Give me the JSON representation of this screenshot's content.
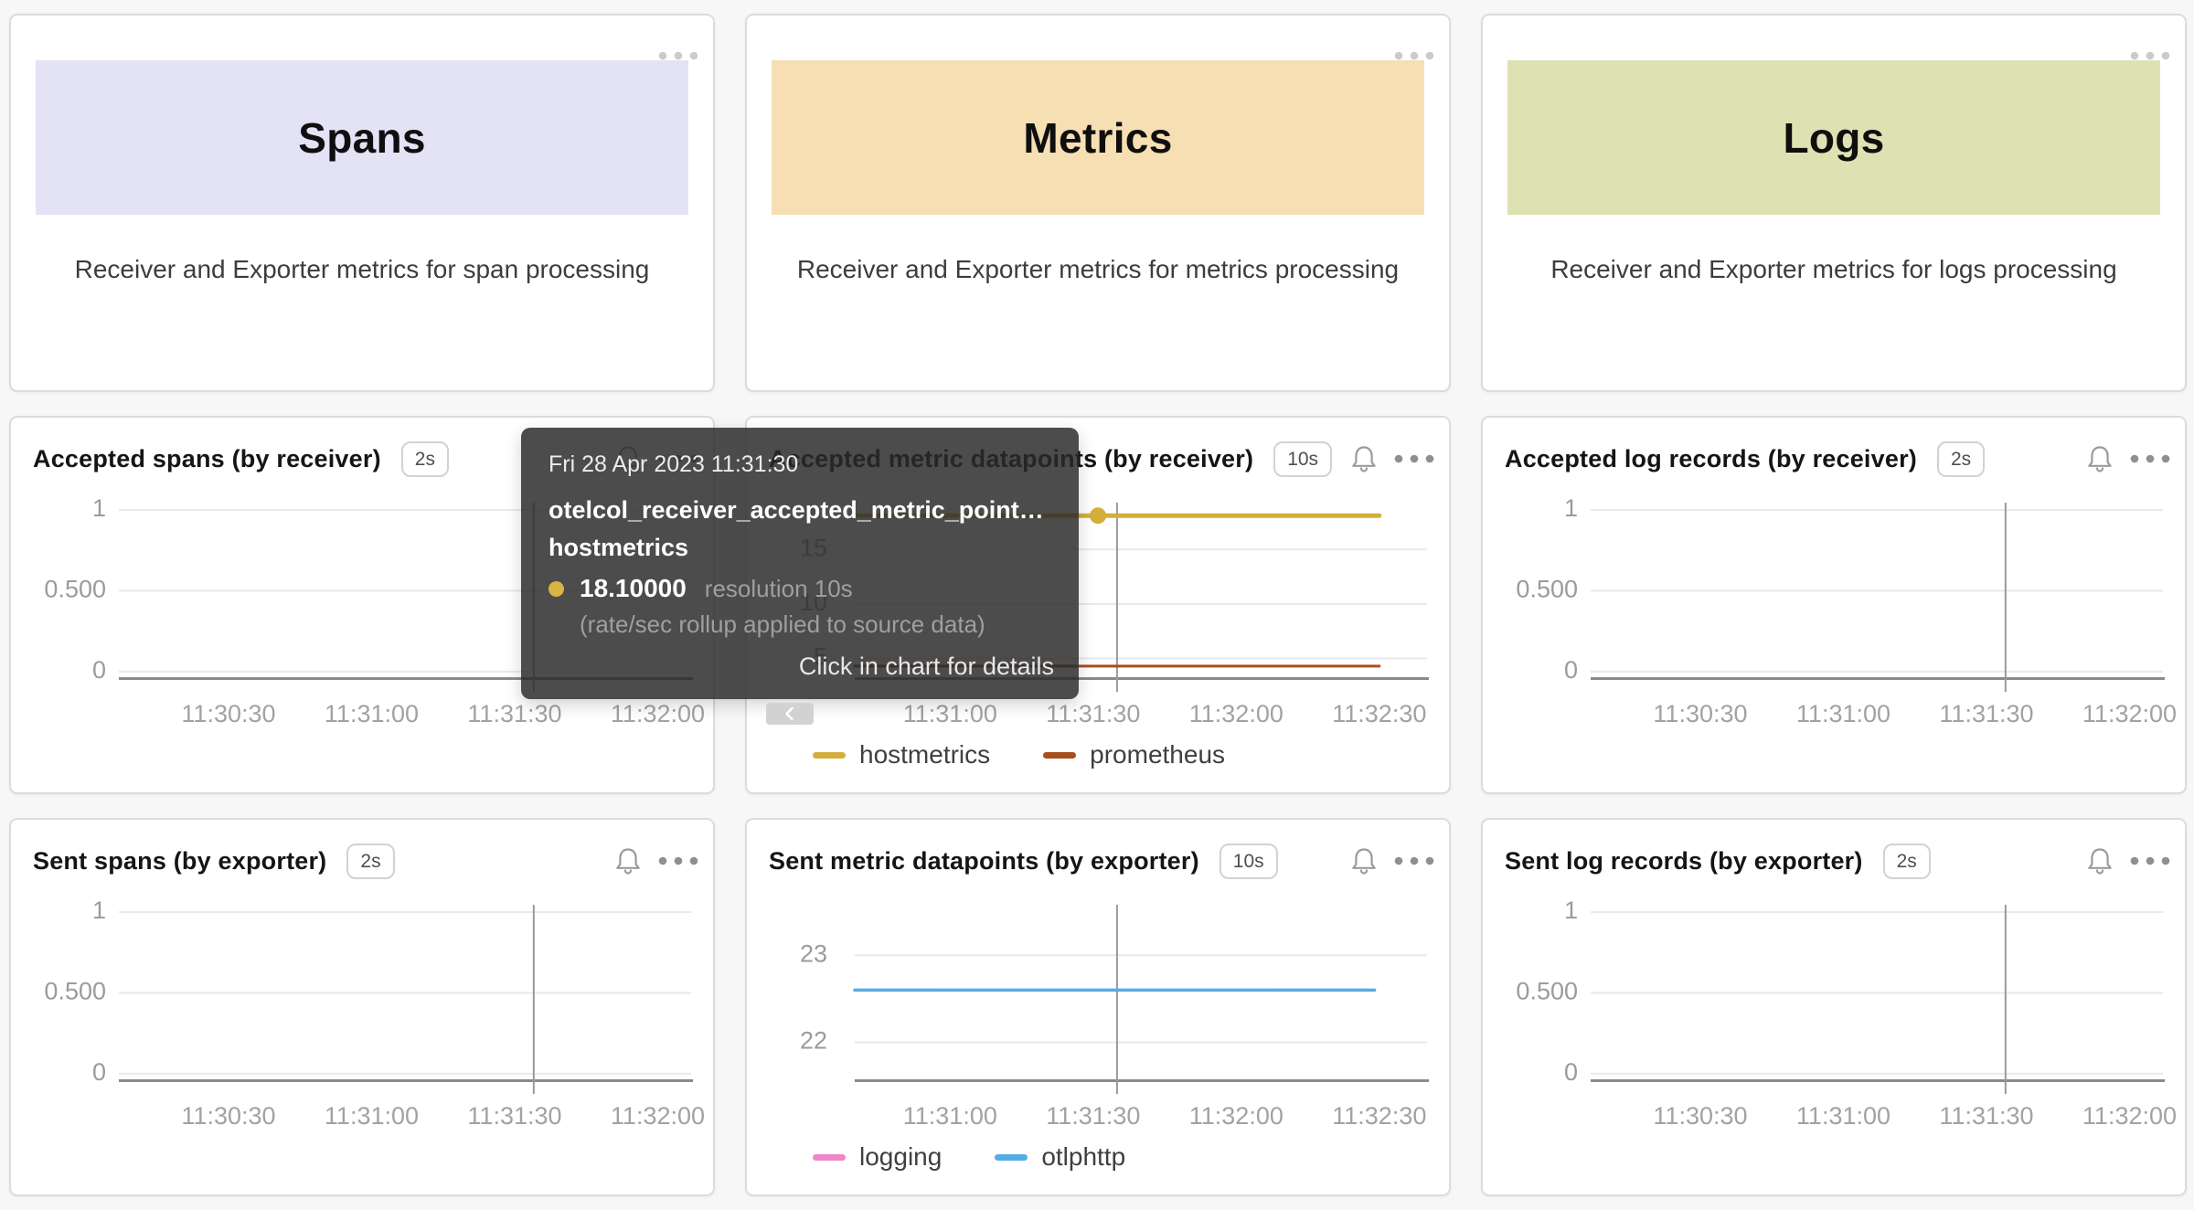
{
  "page_background": "#f7f7f7",
  "summary_cards": [
    {
      "title": "Spans",
      "description": "Receiver and Exporter metrics for span processing",
      "banner_color": "#E4E2F5"
    },
    {
      "title": "Metrics",
      "description": "Receiver and Exporter metrics for metrics processing",
      "banner_color": "#F6DFB3"
    },
    {
      "title": "Logs",
      "description": "Receiver and Exporter metrics for logs processing",
      "banner_color": "#DEE2B2"
    }
  ],
  "chart_data": [
    {
      "type": "line",
      "title": "Accepted spans (by receiver)",
      "resolution_badge": "2s",
      "ylim": [
        -0.043,
        1.045
      ],
      "yticks": [
        {
          "value": 1,
          "label": "1"
        },
        {
          "value": 0.5,
          "label": "0.500"
        },
        {
          "value": 0,
          "label": "0"
        }
      ],
      "xaxis": {
        "start_seconds": 41407,
        "end_seconds": 41527,
        "ticks": [
          {
            "seconds": 41430,
            "label": "11:30:30"
          },
          {
            "seconds": 41460,
            "label": "11:31:00"
          },
          {
            "seconds": 41490,
            "label": "11:31:30"
          },
          {
            "seconds": 41520,
            "label": "11:32:00"
          }
        ]
      },
      "crosshair_seconds": 41494,
      "series": [],
      "legend": [],
      "compact_ylabels": false
    },
    {
      "type": "line",
      "title": "Accepted metric datapoints (by receiver)",
      "resolution_badge": "10s",
      "ylim": [
        3.16,
        19.29
      ],
      "yticks": [
        {
          "value": 15,
          "label": "15"
        },
        {
          "value": 10,
          "label": "10"
        },
        {
          "value": 5,
          "label": "5"
        }
      ],
      "xaxis": {
        "start_seconds": 41440,
        "end_seconds": 41560,
        "ticks": [
          {
            "seconds": 41460,
            "label": "11:31:00"
          },
          {
            "seconds": 41490,
            "label": "11:31:30"
          },
          {
            "seconds": 41520,
            "label": "11:32:00"
          },
          {
            "seconds": 41550,
            "label": "11:32:30"
          }
        ]
      },
      "crosshair_seconds": 41495,
      "series": [
        {
          "name": "hostmetrics",
          "color": "#D4AE3C",
          "value": 18.1,
          "start_seconds": 41440,
          "end_seconds": 41550,
          "width": 5,
          "dot_seconds": 41491
        },
        {
          "name": "prometheus",
          "color": "#A84E1A",
          "value": 4.3,
          "start_seconds": 41440,
          "end_seconds": 41550,
          "width": 3
        }
      ],
      "legend": [
        {
          "label": "hostmetrics",
          "color": "#D4AE3C"
        },
        {
          "label": "prometheus",
          "color": "#A84E1A"
        }
      ],
      "compact_ylabels": true
    },
    {
      "type": "line",
      "title": "Accepted log records (by receiver)",
      "resolution_badge": "2s",
      "ylim": [
        -0.043,
        1.045
      ],
      "yticks": [
        {
          "value": 1,
          "label": "1"
        },
        {
          "value": 0.5,
          "label": "0.500"
        },
        {
          "value": 0,
          "label": "0"
        }
      ],
      "xaxis": {
        "start_seconds": 41407,
        "end_seconds": 41527,
        "ticks": [
          {
            "seconds": 41430,
            "label": "11:30:30"
          },
          {
            "seconds": 41460,
            "label": "11:31:00"
          },
          {
            "seconds": 41490,
            "label": "11:31:30"
          },
          {
            "seconds": 41520,
            "label": "11:32:00"
          }
        ]
      },
      "crosshair_seconds": 41494,
      "series": [],
      "legend": [],
      "compact_ylabels": false
    },
    {
      "type": "line",
      "title": "Sent spans (by exporter)",
      "resolution_badge": "2s",
      "ylim": [
        -0.043,
        1.045
      ],
      "yticks": [
        {
          "value": 1,
          "label": "1"
        },
        {
          "value": 0.5,
          "label": "0.500"
        },
        {
          "value": 0,
          "label": "0"
        }
      ],
      "xaxis": {
        "start_seconds": 41407,
        "end_seconds": 41527,
        "ticks": [
          {
            "seconds": 41430,
            "label": "11:30:30"
          },
          {
            "seconds": 41460,
            "label": "11:31:00"
          },
          {
            "seconds": 41490,
            "label": "11:31:30"
          },
          {
            "seconds": 41520,
            "label": "11:32:00"
          }
        ]
      },
      "crosshair_seconds": 41494,
      "series": [],
      "legend": [],
      "compact_ylabels": false
    },
    {
      "type": "line",
      "title": "Sent metric datapoints (by exporter)",
      "resolution_badge": "10s",
      "ylim": [
        21.56,
        23.58
      ],
      "yticks": [
        {
          "value": 23,
          "label": "23"
        },
        {
          "value": 22,
          "label": "22"
        }
      ],
      "xaxis": {
        "start_seconds": 41440,
        "end_seconds": 41560,
        "ticks": [
          {
            "seconds": 41460,
            "label": "11:31:00"
          },
          {
            "seconds": 41490,
            "label": "11:31:30"
          },
          {
            "seconds": 41520,
            "label": "11:32:00"
          },
          {
            "seconds": 41550,
            "label": "11:32:30"
          }
        ]
      },
      "crosshair_seconds": 41495,
      "series": [
        {
          "name": "otlphttp",
          "color": "#54ADE4",
          "value": 22.6,
          "start_seconds": 41440,
          "end_seconds": 41549,
          "width": 3.5
        }
      ],
      "legend": [
        {
          "label": "logging",
          "color": "#ED87C5"
        },
        {
          "label": "otlphttp",
          "color": "#54ADE4"
        }
      ],
      "compact_ylabels": true
    },
    {
      "type": "line",
      "title": "Sent log records (by exporter)",
      "resolution_badge": "2s",
      "ylim": [
        -0.043,
        1.045
      ],
      "yticks": [
        {
          "value": 1,
          "label": "1"
        },
        {
          "value": 0.5,
          "label": "0.500"
        },
        {
          "value": 0,
          "label": "0"
        }
      ],
      "xaxis": {
        "start_seconds": 41407,
        "end_seconds": 41527,
        "ticks": [
          {
            "seconds": 41430,
            "label": "11:30:30"
          },
          {
            "seconds": 41460,
            "label": "11:31:00"
          },
          {
            "seconds": 41490,
            "label": "11:31:30"
          },
          {
            "seconds": 41520,
            "label": "11:32:00"
          }
        ]
      },
      "crosshair_seconds": 41494,
      "series": [],
      "legend": [],
      "compact_ylabels": false
    }
  ],
  "tooltip": {
    "date": "Fri 28 Apr 2023 11:31:30",
    "metric": "otelcol_receiver_accepted_metric_point…",
    "group": "hostmetrics",
    "value": "18.10000",
    "resolution": "resolution 10s",
    "note": "(rate/sec rollup applied to source data)",
    "footer": "Click in chart for details",
    "marker_color": "#D9B444"
  },
  "colors": {
    "gridline": "#e9e9e9",
    "axis": "#8a8a8a",
    "crosshair": "#9a9a9a",
    "tick_label": "#9b9b9b",
    "xtick_label": "#a2a2a2"
  }
}
